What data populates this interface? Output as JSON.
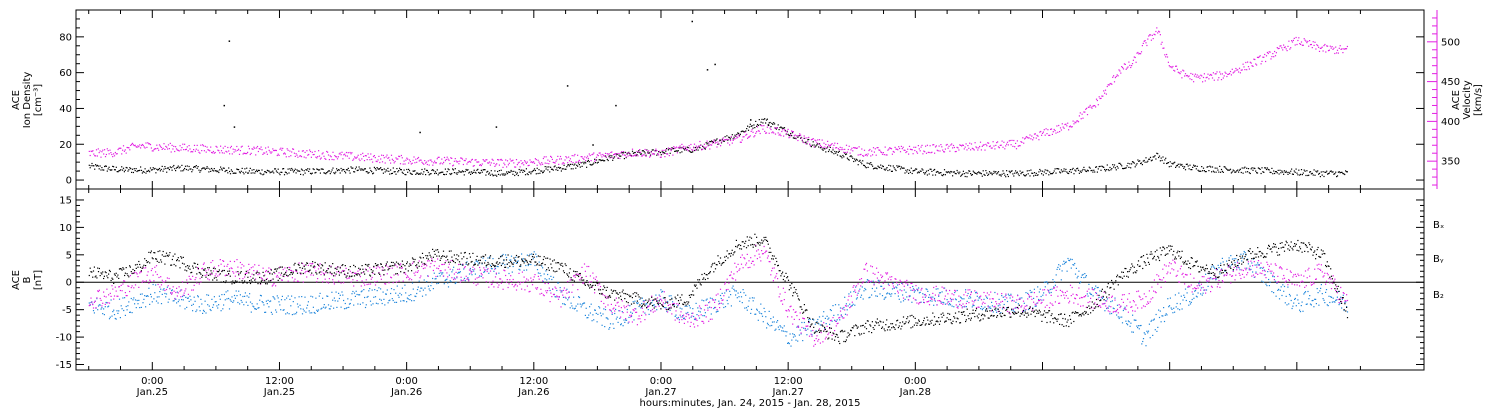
{
  "colors": {
    "black": "#000000",
    "magenta": "#e21ee2",
    "blue": "#1f86db"
  },
  "chart_data": [
    {
      "type": "scatter",
      "panel": "top",
      "ylabel_left": [
        "ACE",
        "Ion Density",
        "[cm⁻³]"
      ],
      "ylabel_right": [
        "ACE",
        "Velocity",
        "[km/s]"
      ],
      "ylim_left": [
        -5,
        95
      ],
      "yticks_left": [
        0,
        20,
        40,
        60,
        80
      ],
      "ylim_right": [
        315,
        540
      ],
      "yticks_right": [
        350,
        400,
        450,
        500
      ],
      "series": [
        {
          "name": "Ion Density",
          "axis": "left",
          "color": "black",
          "x": [
            -0.25,
            -0.2,
            -0.12,
            0.0,
            0.12,
            0.25,
            0.4,
            0.6,
            0.8,
            1.0,
            1.2,
            1.4,
            1.6,
            1.7,
            1.8,
            1.9,
            2.0,
            2.05,
            2.1,
            2.15,
            2.2,
            2.3,
            2.4,
            2.5,
            2.6,
            2.7,
            2.8,
            3.0,
            3.2,
            3.4,
            3.55,
            3.7,
            3.8,
            3.85,
            3.9,
            3.95,
            4.0,
            4.1,
            4.25,
            4.45,
            4.6,
            4.7
          ],
          "y": [
            8,
            7,
            6,
            6,
            7,
            6,
            5,
            5,
            6,
            5,
            5,
            4,
            7,
            9,
            13,
            15,
            16,
            17,
            17,
            18,
            21,
            26,
            34,
            27,
            20,
            15,
            9,
            5,
            4,
            4,
            5,
            6,
            8,
            9,
            11,
            14,
            9,
            7,
            6,
            5,
            4,
            4
          ]
        },
        {
          "name": "Velocity",
          "axis": "right",
          "color": "magenta",
          "x": [
            -0.25,
            -0.15,
            -0.05,
            0.05,
            0.2,
            0.4,
            0.6,
            0.8,
            1.0,
            1.2,
            1.4,
            1.6,
            1.8,
            1.9,
            2.0,
            2.1,
            2.2,
            2.3,
            2.4,
            2.5,
            2.6,
            2.8,
            3.0,
            3.2,
            3.4,
            3.5,
            3.6,
            3.7,
            3.75,
            3.8,
            3.85,
            3.9,
            3.95,
            4.0,
            4.05,
            4.1,
            4.2,
            4.3,
            4.4,
            4.5,
            4.6,
            4.7
          ],
          "y": [
            360,
            362,
            370,
            368,
            366,
            364,
            360,
            356,
            352,
            350,
            348,
            352,
            358,
            362,
            360,
            368,
            372,
            378,
            392,
            385,
            374,
            362,
            365,
            368,
            372,
            385,
            395,
            420,
            440,
            465,
            472,
            498,
            515,
            470,
            460,
            455,
            458,
            470,
            485,
            502,
            492,
            490
          ]
        }
      ],
      "outliers": {
        "x": [
          0.28,
          0.32,
          0.3,
          1.05,
          1.82,
          1.63,
          2.12,
          2.18,
          2.21,
          2.35,
          1.73,
          2.42,
          1.35
        ],
        "y": [
          42,
          30,
          78,
          27,
          42,
          53,
          89,
          62,
          65,
          34,
          20,
          31,
          30
        ]
      }
    },
    {
      "type": "scatter",
      "panel": "bottom",
      "ylabel": [
        "ACE",
        "B",
        "[nT]"
      ],
      "ylim": [
        -16,
        17
      ],
      "yticks": [
        -15,
        -10,
        -5,
        0,
        5,
        10,
        15
      ],
      "legend": [
        "Bₓ",
        "Bᵧ",
        "B₂"
      ],
      "series": [
        {
          "name": "Bx",
          "color": "black",
          "x": [
            -0.25,
            -0.15,
            -0.05,
            0.0,
            0.1,
            0.2,
            0.3,
            0.45,
            0.6,
            0.8,
            1.0,
            1.1,
            1.3,
            1.5,
            1.6,
            1.7,
            1.8,
            1.9,
            2.0,
            2.1,
            2.2,
            2.3,
            2.4,
            2.5,
            2.6,
            2.7,
            2.8,
            3.0,
            3.2,
            3.4,
            3.5,
            3.6,
            3.7,
            3.8,
            3.9,
            4.0,
            4.1,
            4.2,
            4.3,
            4.4,
            4.5,
            4.6,
            4.7
          ],
          "y": [
            2,
            1,
            3,
            5,
            4,
            2,
            1,
            1,
            3,
            2,
            3,
            5,
            4,
            4,
            3,
            0,
            -2,
            -3,
            -4,
            -3,
            3,
            7,
            8,
            0,
            -8,
            -10,
            -8,
            -7,
            -6,
            -5,
            -6,
            -7,
            -4,
            1,
            4,
            6,
            3,
            2,
            5,
            6,
            7,
            5,
            -6
          ]
        },
        {
          "name": "By",
          "color": "blue",
          "x": [
            -0.25,
            -0.15,
            -0.05,
            0.0,
            0.1,
            0.2,
            0.3,
            0.45,
            0.6,
            0.8,
            1.0,
            1.1,
            1.3,
            1.5,
            1.6,
            1.7,
            1.8,
            1.9,
            2.0,
            2.1,
            2.2,
            2.3,
            2.4,
            2.5,
            2.6,
            2.7,
            2.8,
            3.0,
            3.2,
            3.4,
            3.5,
            3.6,
            3.7,
            3.8,
            3.9,
            4.0,
            4.1,
            4.2,
            4.3,
            4.4,
            4.5,
            4.6,
            4.7
          ],
          "y": [
            -4,
            -5,
            -3,
            -2,
            -3,
            -4,
            -3,
            -4,
            -4,
            -3,
            -2,
            0,
            3,
            4,
            -2,
            -5,
            -7,
            -5,
            -3,
            -6,
            -4,
            -2,
            -6,
            -10,
            -8,
            -5,
            -1,
            -2,
            -3,
            -4,
            -2,
            4,
            -2,
            -5,
            -10,
            -4,
            -2,
            3,
            4,
            0,
            -4,
            -2,
            -4
          ]
        },
        {
          "name": "Bz",
          "color": "magenta",
          "x": [
            -0.25,
            -0.15,
            -0.05,
            0.0,
            0.1,
            0.2,
            0.3,
            0.45,
            0.6,
            0.8,
            1.0,
            1.1,
            1.3,
            1.5,
            1.6,
            1.7,
            1.8,
            1.9,
            2.0,
            2.1,
            2.2,
            2.3,
            2.4,
            2.5,
            2.6,
            2.7,
            2.8,
            3.0,
            3.2,
            3.4,
            3.5,
            3.6,
            3.7,
            3.8,
            3.9,
            4.0,
            4.1,
            4.2,
            4.3,
            4.4,
            4.5,
            4.6,
            4.7
          ],
          "y": [
            -3,
            -2,
            1,
            2,
            -2,
            2,
            3,
            1,
            2,
            1,
            2,
            3,
            1,
            0,
            -3,
            2,
            -4,
            -6,
            -3,
            -7,
            -5,
            3,
            6,
            -5,
            -10,
            -7,
            2,
            -2,
            -3,
            -4,
            -3,
            -2,
            -3,
            -4,
            -3,
            3,
            -1,
            1,
            3,
            2,
            0,
            2,
            -4
          ]
        }
      ]
    }
  ],
  "x_axis": {
    "xlim": [
      -0.3,
      5.0
    ],
    "ticks": [
      {
        "x": 0.0,
        "time": "0:00",
        "date": "Jan.25"
      },
      {
        "x": 0.5,
        "time": "12:00",
        "date": "Jan.25"
      },
      {
        "x": 1.0,
        "time": "0:00",
        "date": "Jan.26"
      },
      {
        "x": 1.5,
        "time": "12:00",
        "date": "Jan.26"
      },
      {
        "x": 2.0,
        "time": "0:00",
        "date": "Jan.27"
      },
      {
        "x": 2.5,
        "time": "12:00",
        "date": "Jan.27"
      },
      {
        "x": 3.0,
        "time": "0:00",
        "date": "Jan.28"
      }
    ],
    "label": "hours:minutes, Jan. 24, 2015 - Jan. 28, 2015"
  }
}
